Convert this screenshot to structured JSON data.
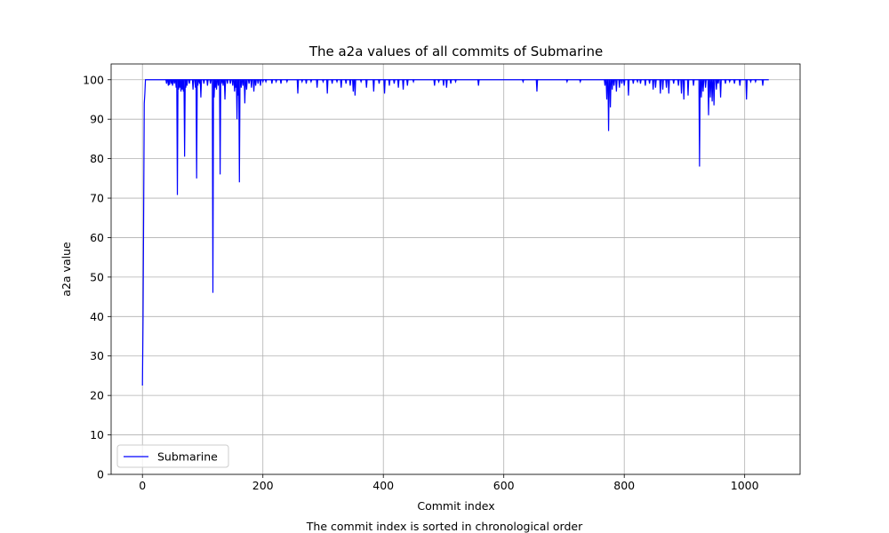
{
  "chart_data": {
    "type": "line",
    "title": "The a2a values of all commits of Submarine",
    "xlabel": "Commit index",
    "ylabel": "a2a value",
    "caption": "The commit index is sorted in chronological order",
    "xlim": [
      -52,
      1092
    ],
    "ylim": [
      0,
      104
    ],
    "xticks": [
      0,
      200,
      400,
      600,
      800,
      1000
    ],
    "yticks": [
      0,
      10,
      20,
      30,
      40,
      50,
      60,
      70,
      80,
      90,
      100
    ],
    "grid": true,
    "legend_position": "lower-left",
    "colors": {
      "series": "#0000ff"
    },
    "series": [
      {
        "name": "Submarine",
        "baseline": 100,
        "x_range": [
          0,
          1040
        ],
        "x": [
          0,
          1,
          2,
          3,
          4,
          5,
          6,
          8
        ],
        "y": [
          22.5,
          39,
          65.5,
          94,
          96.5,
          100,
          100,
          100
        ],
        "dips": [
          [
            40,
            99.0
          ],
          [
            43,
            98.5
          ],
          [
            45,
            98.7
          ],
          [
            48,
            99.0
          ],
          [
            50,
            98.5
          ],
          [
            53,
            99.0
          ],
          [
            56,
            98.0
          ],
          [
            58,
            70.8
          ],
          [
            60,
            97.5
          ],
          [
            62,
            98.0
          ],
          [
            64,
            97.0
          ],
          [
            66,
            97.5
          ],
          [
            68,
            97.0
          ],
          [
            70,
            80.5
          ],
          [
            72,
            98.0
          ],
          [
            74,
            98.5
          ],
          [
            78,
            99.0
          ],
          [
            84,
            97.5
          ],
          [
            88,
            98.0
          ],
          [
            90,
            75.0
          ],
          [
            92,
            98.5
          ],
          [
            95,
            99.0
          ],
          [
            97,
            95.5
          ],
          [
            102,
            99.0
          ],
          [
            108,
            98.5
          ],
          [
            113,
            99.0
          ],
          [
            117,
            46.0
          ],
          [
            119,
            95.5
          ],
          [
            121,
            98.0
          ],
          [
            123,
            97.5
          ],
          [
            126,
            98.5
          ],
          [
            129,
            76.0
          ],
          [
            131,
            99.0
          ],
          [
            134,
            98.5
          ],
          [
            137,
            95.0
          ],
          [
            141,
            99.0
          ],
          [
            146,
            99.0
          ],
          [
            150,
            98.5
          ],
          [
            153,
            97.0
          ],
          [
            155,
            98.0
          ],
          [
            157,
            90.0
          ],
          [
            159,
            96.0
          ],
          [
            161,
            74.0
          ],
          [
            164,
            98.0
          ],
          [
            167,
            98.5
          ],
          [
            170,
            94.0
          ],
          [
            173,
            97.5
          ],
          [
            177,
            99.0
          ],
          [
            181,
            98.0
          ],
          [
            185,
            97.0
          ],
          [
            188,
            98.5
          ],
          [
            192,
            99.0
          ],
          [
            196,
            98.5
          ],
          [
            200,
            99.5
          ],
          [
            205,
            99.5
          ],
          [
            215,
            99.0
          ],
          [
            222,
            99.5
          ],
          [
            230,
            99.0
          ],
          [
            240,
            99.5
          ],
          [
            258,
            96.5
          ],
          [
            265,
            99.5
          ],
          [
            272,
            99.0
          ],
          [
            280,
            99.5
          ],
          [
            290,
            98.0
          ],
          [
            300,
            99.5
          ],
          [
            307,
            96.5
          ],
          [
            315,
            99.0
          ],
          [
            323,
            99.5
          ],
          [
            330,
            98.0
          ],
          [
            338,
            99.0
          ],
          [
            345,
            98.5
          ],
          [
            350,
            97.0
          ],
          [
            353,
            96.0
          ],
          [
            363,
            99.5
          ],
          [
            372,
            98.0
          ],
          [
            384,
            97.0
          ],
          [
            393,
            99.0
          ],
          [
            402,
            96.5
          ],
          [
            410,
            98.5
          ],
          [
            418,
            99.0
          ],
          [
            425,
            98.0
          ],
          [
            433,
            97.5
          ],
          [
            440,
            98.5
          ],
          [
            450,
            99.5
          ],
          [
            485,
            98.5
          ],
          [
            492,
            99.5
          ],
          [
            500,
            98.5
          ],
          [
            505,
            98.0
          ],
          [
            512,
            99.0
          ],
          [
            520,
            99.5
          ],
          [
            558,
            98.5
          ],
          [
            632,
            99.5
          ],
          [
            655,
            97.0
          ],
          [
            705,
            99.5
          ],
          [
            727,
            99.5
          ],
          [
            768,
            98.5
          ],
          [
            771,
            95.0
          ],
          [
            774,
            87.0
          ],
          [
            777,
            93.0
          ],
          [
            780,
            97.5
          ],
          [
            783,
            98.5
          ],
          [
            787,
            97.0
          ],
          [
            792,
            98.0
          ],
          [
            796,
            99.0
          ],
          [
            800,
            98.5
          ],
          [
            807,
            96.0
          ],
          [
            815,
            99.0
          ],
          [
            822,
            99.5
          ],
          [
            827,
            99.0
          ],
          [
            835,
            98.5
          ],
          [
            842,
            99.0
          ],
          [
            848,
            97.5
          ],
          [
            852,
            98.0
          ],
          [
            860,
            96.5
          ],
          [
            864,
            97.5
          ],
          [
            870,
            98.0
          ],
          [
            874,
            96.5
          ],
          [
            882,
            99.0
          ],
          [
            890,
            98.5
          ],
          [
            895,
            96.5
          ],
          [
            899,
            95.0
          ],
          [
            906,
            96.0
          ],
          [
            915,
            98.5
          ],
          [
            925,
            78.0
          ],
          [
            928,
            95.5
          ],
          [
            931,
            97.0
          ],
          [
            935,
            98.0
          ],
          [
            940,
            91.0
          ],
          [
            943,
            95.5
          ],
          [
            946,
            94.5
          ],
          [
            949,
            93.5
          ],
          [
            953,
            97.5
          ],
          [
            956,
            99.0
          ],
          [
            960,
            95.5
          ],
          [
            968,
            99.0
          ],
          [
            975,
            99.5
          ],
          [
            983,
            99.0
          ],
          [
            992,
            98.5
          ],
          [
            1003,
            95.0
          ],
          [
            1010,
            99.5
          ],
          [
            1018,
            99.5
          ],
          [
            1030,
            98.5
          ]
        ]
      }
    ]
  }
}
